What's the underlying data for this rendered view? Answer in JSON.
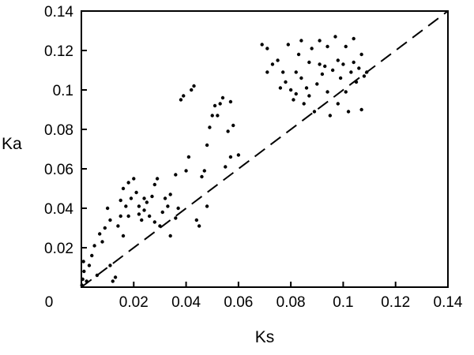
{
  "chart_data": {
    "type": "scatter",
    "title": "",
    "xlabel": "Ks",
    "ylabel": "Ka",
    "xlim": [
      0,
      0.14
    ],
    "ylim": [
      0,
      0.14
    ],
    "grid": false,
    "legend": "none",
    "x_ticks": [
      0.02,
      0.04,
      0.06,
      0.08,
      0.1,
      0.12,
      0.14
    ],
    "x_tick_labels": [
      "0.02",
      "0.04",
      "0.06",
      "0.08",
      "0.1",
      "0.12",
      "0.14"
    ],
    "y_ticks": [
      0.02,
      0.04,
      0.06,
      0.08,
      0.1,
      0.12,
      0.14
    ],
    "y_tick_labels": [
      "0.02",
      "0.04",
      "0.06",
      "0.08",
      "0.1",
      "0.12",
      "0.14"
    ],
    "origin_label": "0",
    "colors": {
      "points": "#000000",
      "axes": "#000000",
      "reference_line": "#000000"
    },
    "reference_line": {
      "style": "dashed",
      "points": [
        [
          0,
          0
        ],
        [
          0.14,
          0.14
        ]
      ]
    },
    "series": [
      {
        "points": [
          [
            0.0002,
            0.001
          ],
          [
            0.0005,
            0.004
          ],
          [
            0.001,
            0.008
          ],
          [
            0.0008,
            0.013
          ],
          [
            0.002,
            0.003
          ],
          [
            0.003,
            0.011
          ],
          [
            0.004,
            0.016
          ],
          [
            0.005,
            0.021
          ],
          [
            0.006,
            0.006
          ],
          [
            0.007,
            0.027
          ],
          [
            0.008,
            0.023
          ],
          [
            0.009,
            0.03
          ],
          [
            0.01,
            0.04
          ],
          [
            0.011,
            0.034
          ],
          [
            0.012,
            0.003
          ],
          [
            0.013,
            0.005
          ],
          [
            0.014,
            0.031
          ],
          [
            0.015,
            0.036
          ],
          [
            0.015,
            0.044
          ],
          [
            0.016,
            0.05
          ],
          [
            0.017,
            0.041
          ],
          [
            0.018,
            0.053
          ],
          [
            0.019,
            0.045
          ],
          [
            0.02,
            0.055
          ],
          [
            0.021,
            0.048
          ],
          [
            0.022,
            0.037
          ],
          [
            0.022,
            0.041
          ],
          [
            0.023,
            0.034
          ],
          [
            0.024,
            0.039
          ],
          [
            0.025,
            0.043
          ],
          [
            0.026,
            0.036
          ],
          [
            0.027,
            0.046
          ],
          [
            0.028,
            0.052
          ],
          [
            0.028,
            0.033
          ],
          [
            0.03,
            0.031
          ],
          [
            0.031,
            0.038
          ],
          [
            0.032,
            0.045
          ],
          [
            0.033,
            0.041
          ],
          [
            0.034,
            0.026
          ],
          [
            0.036,
            0.035
          ],
          [
            0.037,
            0.04
          ],
          [
            0.038,
            0.095
          ],
          [
            0.039,
            0.097
          ],
          [
            0.041,
            0.066
          ],
          [
            0.042,
            0.1
          ],
          [
            0.043,
            0.102
          ],
          [
            0.044,
            0.034
          ],
          [
            0.046,
            0.056
          ],
          [
            0.047,
            0.059
          ],
          [
            0.048,
            0.072
          ],
          [
            0.049,
            0.081
          ],
          [
            0.05,
            0.087
          ],
          [
            0.051,
            0.092
          ],
          [
            0.052,
            0.087
          ],
          [
            0.053,
            0.093
          ],
          [
            0.054,
            0.096
          ],
          [
            0.055,
            0.061
          ],
          [
            0.056,
            0.079
          ],
          [
            0.057,
            0.094
          ],
          [
            0.058,
            0.082
          ],
          [
            0.069,
            0.123
          ],
          [
            0.071,
            0.121
          ],
          [
            0.073,
            0.113
          ],
          [
            0.075,
            0.115
          ],
          [
            0.077,
            0.109
          ],
          [
            0.078,
            0.104
          ],
          [
            0.079,
            0.123
          ],
          [
            0.08,
            0.1
          ],
          [
            0.081,
            0.095
          ],
          [
            0.082,
            0.098
          ],
          [
            0.083,
            0.118
          ],
          [
            0.084,
            0.106
          ],
          [
            0.085,
            0.093
          ],
          [
            0.086,
            0.101
          ],
          [
            0.087,
            0.114
          ],
          [
            0.088,
            0.121
          ],
          [
            0.089,
            0.089
          ],
          [
            0.09,
            0.103
          ],
          [
            0.091,
            0.125
          ],
          [
            0.092,
            0.108
          ],
          [
            0.093,
            0.112
          ],
          [
            0.094,
            0.099
          ],
          [
            0.095,
            0.087
          ],
          [
            0.096,
            0.11
          ],
          [
            0.097,
            0.127
          ],
          [
            0.098,
            0.115
          ],
          [
            0.099,
            0.106
          ],
          [
            0.1,
            0.113
          ],
          [
            0.101,
            0.122
          ],
          [
            0.102,
            0.089
          ],
          [
            0.103,
            0.109
          ],
          [
            0.104,
            0.126
          ],
          [
            0.105,
            0.104
          ],
          [
            0.106,
            0.111
          ],
          [
            0.107,
            0.09
          ],
          [
            0.108,
            0.107
          ],
          [
            0.109,
            0.109
          ],
          [
            0.011,
            0.011
          ],
          [
            0.016,
            0.026
          ],
          [
            0.018,
            0.036
          ],
          [
            0.024,
            0.045
          ],
          [
            0.029,
            0.055
          ],
          [
            0.034,
            0.047
          ],
          [
            0.036,
            0.057
          ],
          [
            0.04,
            0.059
          ],
          [
            0.045,
            0.031
          ],
          [
            0.048,
            0.041
          ],
          [
            0.057,
            0.066
          ],
          [
            0.06,
            0.067
          ],
          [
            0.071,
            0.109
          ],
          [
            0.076,
            0.101
          ],
          [
            0.082,
            0.109
          ],
          [
            0.084,
            0.125
          ],
          [
            0.087,
            0.097
          ],
          [
            0.091,
            0.113
          ],
          [
            0.094,
            0.122
          ],
          [
            0.098,
            0.093
          ],
          [
            0.101,
            0.099
          ],
          [
            0.104,
            0.114
          ],
          [
            0.107,
            0.118
          ]
        ]
      }
    ]
  }
}
